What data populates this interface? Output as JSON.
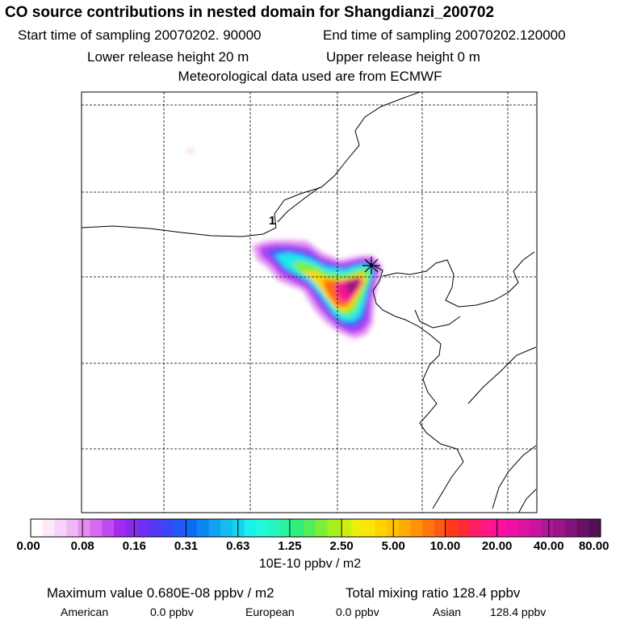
{
  "header": {
    "title": "CO  source contributions in nested domain for Shangdianzi_200702",
    "start_time": "Start time of sampling 20070202. 90000",
    "end_time": "End time of sampling 20070202.120000",
    "lower_height": "Lower release height   20 m",
    "upper_height": "Upper release height    0 m",
    "met_data": "Meteorological data used are from ECMWF"
  },
  "map": {
    "station_label": "1",
    "station_marker": "asterisk"
  },
  "chart_data": {
    "type": "heatmap",
    "colorbar": {
      "tick_labels": [
        "0.00",
        "0.08",
        "0.16",
        "0.31",
        "0.63",
        "1.25",
        "2.50",
        "5.00",
        "10.00",
        "20.00",
        "40.00",
        "80.00"
      ],
      "unit_label": "10E-10 ppbv / m2",
      "colors": [
        "#ffffff",
        "#fde8fc",
        "#f8d2fa",
        "#f0b8f7",
        "#e48cf2",
        "#d66cef",
        "#c14bf0",
        "#a32bf2",
        "#8a2af0",
        "#6f2ef4",
        "#5538f5",
        "#3a46f7",
        "#1d58f8",
        "#0a6cf4",
        "#0a86f2",
        "#0fa2f4",
        "#12beef",
        "#16d4ec",
        "#1cf0ef",
        "#23f8da",
        "#27f6bd",
        "#2bf39c",
        "#30f07c",
        "#54ef58",
        "#7cf038",
        "#a6f01d",
        "#ccef10",
        "#eeee0a",
        "#fde507",
        "#ffd404",
        "#ffc102",
        "#ffab02",
        "#ff9206",
        "#ff780d",
        "#ff5a15",
        "#ff3b1c",
        "#ff2a36",
        "#ff1d63",
        "#ff1688",
        "#fc119f",
        "#ef12a2",
        "#dd13a3",
        "#c9149f",
        "#b31496",
        "#9a148a",
        "#82137a",
        "#6a1167",
        "#520f53"
      ]
    },
    "max_value": "Maximum value  0.680E-08 ppbv / m2",
    "total_mixing_ratio": "Total mixing ratio      128.4 ppbv",
    "regions": [
      {
        "name": "American",
        "value": "0.0 ppbv"
      },
      {
        "name": "European",
        "value": "0.0 ppbv"
      },
      {
        "name": "Asian",
        "value": "128.4 ppbv"
      }
    ]
  }
}
